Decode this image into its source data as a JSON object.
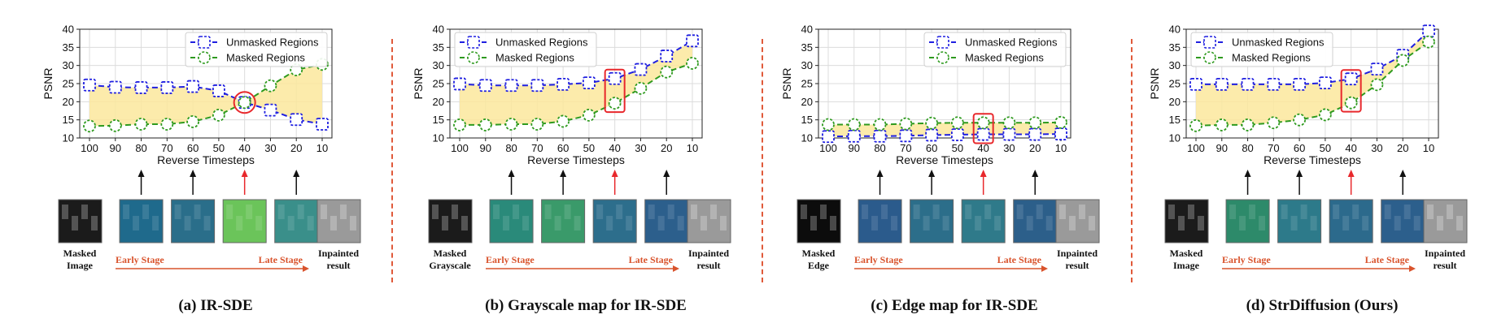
{
  "chart_data": [
    {
      "type": "line",
      "caption": "(a) IR-SDE",
      "x": [
        100,
        90,
        80,
        70,
        60,
        50,
        40,
        30,
        20,
        10
      ],
      "xlabel": "Reverse Timesteps",
      "ylabel": "PSNR",
      "ylim": [
        10,
        40
      ],
      "yticks": [
        10,
        15,
        20,
        25,
        30,
        35,
        40
      ],
      "grid": true,
      "legend_position": "top-right",
      "series": [
        {
          "name": "Unmasked Regions",
          "color": "#1f1fe0",
          "marker": "square",
          "values": [
            24.6,
            24.0,
            23.9,
            23.9,
            24.2,
            23.0,
            19.8,
            17.7,
            15.1,
            13.8
          ]
        },
        {
          "name": "Masked Regions",
          "color": "#2e9a1e",
          "marker": "circle",
          "values": [
            13.3,
            13.4,
            13.8,
            13.8,
            14.5,
            16.3,
            19.8,
            24.4,
            28.8,
            30.3
          ]
        }
      ],
      "highlight": {
        "x": 40,
        "shape": "circle"
      },
      "bottom_left_label": [
        "Masked",
        "Image"
      ],
      "bottom_right_label": [
        "Inpainted",
        "result"
      ],
      "early_label": "Early Stage",
      "late_label": "Late Stage"
    },
    {
      "type": "line",
      "caption": "(b) Grayscale map for IR-SDE",
      "x": [
        100,
        90,
        80,
        70,
        60,
        50,
        40,
        30,
        20,
        10
      ],
      "xlabel": "Reverse Timesteps",
      "ylabel": "PSNR",
      "ylim": [
        10,
        40
      ],
      "yticks": [
        10,
        15,
        20,
        25,
        30,
        35,
        40
      ],
      "grid": true,
      "legend_position": "top-left",
      "series": [
        {
          "name": "Unmasked Regions",
          "color": "#1f1fe0",
          "marker": "square",
          "values": [
            24.9,
            24.5,
            24.5,
            24.5,
            24.8,
            25.2,
            26.4,
            28.9,
            32.6,
            36.8
          ]
        },
        {
          "name": "Masked Regions",
          "color": "#2e9a1e",
          "marker": "circle",
          "values": [
            13.6,
            13.6,
            13.8,
            13.8,
            14.6,
            16.3,
            19.6,
            23.7,
            28.2,
            30.6
          ]
        }
      ],
      "highlight": {
        "x": 40,
        "shape": "rect"
      },
      "bottom_left_label": [
        "Masked",
        "Grayscale"
      ],
      "bottom_right_label": [
        "Inpainted",
        "result"
      ],
      "early_label": "Early Stage",
      "late_label": "Late Stage"
    },
    {
      "type": "line",
      "caption": "(c) Edge map for IR-SDE",
      "x": [
        100,
        90,
        80,
        70,
        60,
        50,
        40,
        30,
        20,
        10
      ],
      "xlabel": "Reverse Timesteps",
      "ylabel": "PSNR",
      "ylim": [
        10,
        40
      ],
      "yticks": [
        10,
        15,
        20,
        25,
        30,
        35,
        40
      ],
      "grid": true,
      "legend_position": "top-right",
      "series": [
        {
          "name": "Unmasked Regions",
          "color": "#1f1fe0",
          "marker": "square",
          "values": [
            10.4,
            10.5,
            10.5,
            10.6,
            10.8,
            10.9,
            11.0,
            11.0,
            11.0,
            11.1
          ]
        },
        {
          "name": "Masked Regions",
          "color": "#2e9a1e",
          "marker": "circle",
          "values": [
            13.7,
            13.7,
            13.7,
            13.9,
            14.1,
            14.2,
            14.2,
            14.2,
            14.2,
            14.3
          ]
        }
      ],
      "highlight": {
        "x": 40,
        "shape": "rect"
      },
      "bottom_left_label": [
        "Masked",
        "Edge"
      ],
      "bottom_right_label": [
        "Inpainted",
        "result"
      ],
      "early_label": "Early Stage",
      "late_label": "Late Stage"
    },
    {
      "type": "line",
      "caption": "(d) StrDiffusion (Ours)",
      "x": [
        100,
        90,
        80,
        70,
        60,
        50,
        40,
        30,
        20,
        10
      ],
      "xlabel": "Reverse Timesteps",
      "ylabel": "PSNR",
      "ylim": [
        10,
        40
      ],
      "yticks": [
        10,
        15,
        20,
        25,
        30,
        35,
        40
      ],
      "grid": true,
      "legend_position": "top-left",
      "series": [
        {
          "name": "Unmasked Regions",
          "color": "#1f1fe0",
          "marker": "square",
          "values": [
            24.8,
            24.8,
            24.8,
            24.8,
            24.8,
            25.2,
            26.3,
            29.0,
            32.8,
            39.5
          ]
        },
        {
          "name": "Masked Regions",
          "color": "#2e9a1e",
          "marker": "circle",
          "values": [
            13.4,
            13.6,
            13.6,
            14.2,
            15.0,
            16.4,
            19.7,
            24.7,
            31.4,
            36.5
          ]
        }
      ],
      "highlight": {
        "x": 40,
        "shape": "rect"
      },
      "bottom_left_label": [
        "Masked",
        "Image"
      ],
      "bottom_right_label": [
        "Inpainted",
        "result"
      ],
      "early_label": "Early Stage",
      "late_label": "Late Stage"
    }
  ],
  "colors": {
    "fill": "#fbe79c",
    "grid": "#dcdcdc",
    "highlight": "#e8282c",
    "arrow_black": "#111111",
    "arrow_red": "#e8282c",
    "stage": "#d9532c"
  },
  "thumbnail_palettes": [
    [
      "#1b1b1b",
      "#1f6a8c",
      "#2a6e8a",
      "#6bc45a",
      "#3a8f8a"
    ],
    [
      "#1b1b1b",
      "#2a8a7a",
      "#3a9a6a",
      "#2d6e8c",
      "#2c5f8c"
    ],
    [
      "#0c0c0c",
      "#2b5b8c",
      "#2c6e8a",
      "#2f7a8a",
      "#2c5f8a"
    ],
    [
      "#1b1b1b",
      "#2d8a6a",
      "#2d7a8a",
      "#2c6a8c",
      "#2c5f8c"
    ]
  ]
}
